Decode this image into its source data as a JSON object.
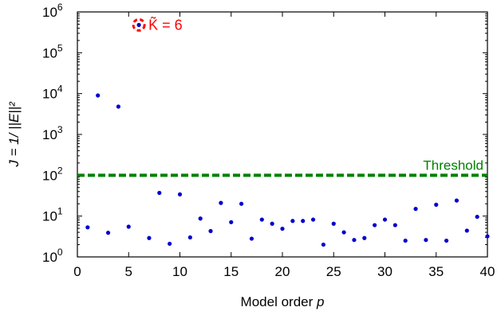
{
  "chart_data": {
    "type": "scatter",
    "xlabel_prefix": "Model order ",
    "xlabel_var": "p",
    "ylabel": "J = 1/ ||E||²",
    "xlim": [
      0,
      40
    ],
    "xticks": [
      "0",
      "5",
      "10",
      "15",
      "20",
      "25",
      "30",
      "35",
      "40"
    ],
    "ylim_log10": [
      0,
      6
    ],
    "y_scale": "log",
    "yticks": [
      {
        "base": "10",
        "exp": "0"
      },
      {
        "base": "10",
        "exp": "1"
      },
      {
        "base": "10",
        "exp": "2"
      },
      {
        "base": "10",
        "exp": "3"
      },
      {
        "base": "10",
        "exp": "4"
      },
      {
        "base": "10",
        "exp": "5"
      },
      {
        "base": "10",
        "exp": "6"
      }
    ],
    "grid": false,
    "threshold": {
      "label": "Threshold",
      "value": 100,
      "color": "#008000"
    },
    "annotation": {
      "text": "K̃ = 6",
      "x": 6,
      "y": 480000,
      "color": "#ff0000"
    },
    "series": [
      {
        "color": "#0000cc",
        "x": [
          1,
          2,
          3,
          4,
          5,
          6,
          7,
          8,
          9,
          10,
          11,
          12,
          13,
          14,
          15,
          16,
          17,
          18,
          19,
          20,
          21,
          22,
          23,
          24,
          25,
          26,
          27,
          28,
          29,
          30,
          31,
          32,
          33,
          34,
          35,
          36,
          37,
          38,
          39,
          40
        ],
        "y": [
          5.3,
          9000,
          3.9,
          4800,
          5.5,
          480000,
          2.9,
          37,
          2.1,
          34,
          3.0,
          8.7,
          4.3,
          21,
          7.1,
          20,
          2.8,
          8.2,
          6.5,
          4.9,
          7.6,
          7.6,
          8.2,
          2.0,
          6.5,
          4.0,
          2.6,
          2.9,
          6.0,
          8.2,
          6.0,
          2.5,
          15,
          2.6,
          19,
          2.5,
          24,
          4.4,
          9.6,
          3.2
        ]
      }
    ]
  }
}
